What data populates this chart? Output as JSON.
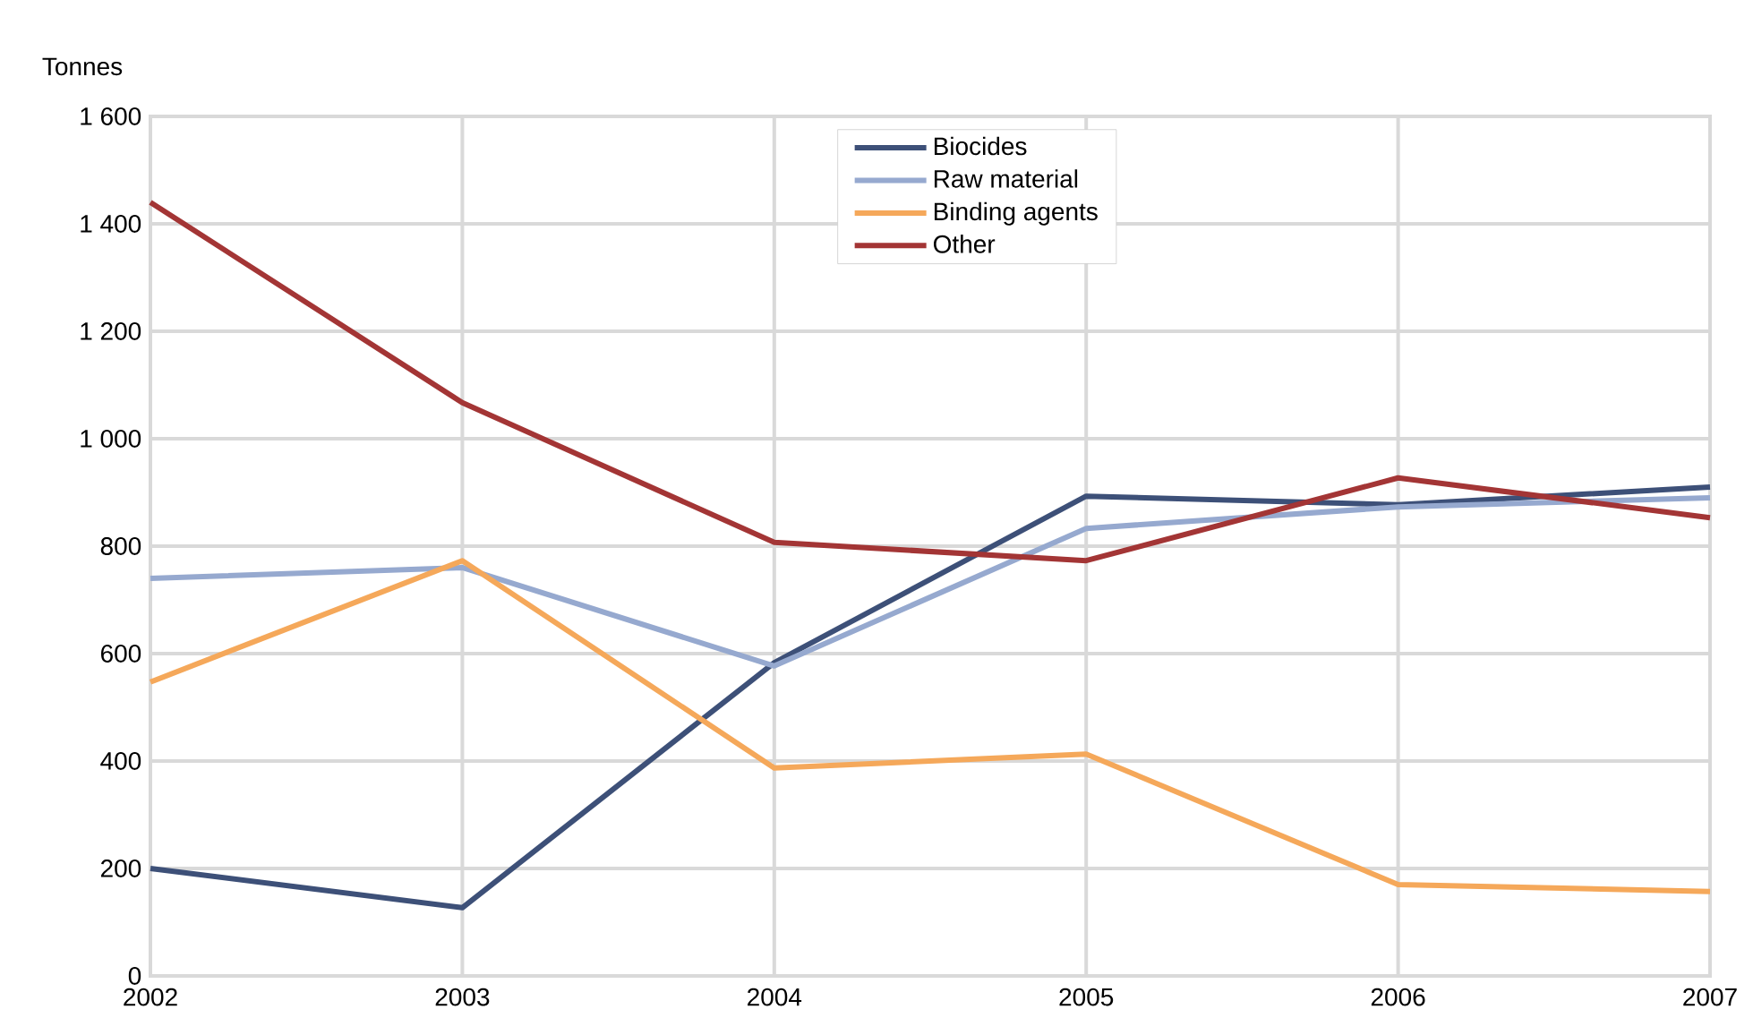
{
  "chart_data": {
    "type": "line",
    "ylabel": "Tonnes",
    "x": [
      2002,
      2003,
      2004,
      2005,
      2006,
      2007
    ],
    "series": [
      {
        "name": "Biocides",
        "color": "#3d5078",
        "values": [
          200,
          127,
          583,
          893,
          877,
          910
        ]
      },
      {
        "name": "Raw material",
        "color": "#96a9cf",
        "values": [
          740,
          760,
          577,
          833,
          873,
          890
        ]
      },
      {
        "name": "Binding agents",
        "color": "#f5a85a",
        "values": [
          547,
          773,
          387,
          413,
          170,
          157
        ]
      },
      {
        "name": "Other",
        "color": "#a33535",
        "values": [
          1440,
          1067,
          807,
          773,
          927,
          853
        ]
      }
    ],
    "xlim": [
      2002,
      2007
    ],
    "ylim": [
      0,
      1600
    ],
    "xticks": [
      2002,
      2003,
      2004,
      2005,
      2006,
      2007
    ],
    "yticks": [
      0,
      200,
      400,
      600,
      800,
      {
        "value": 1000,
        "label": "1 000"
      },
      {
        "value": 1200,
        "label": "1 200"
      },
      {
        "value": 1400,
        "label": "1 400"
      },
      {
        "value": 1600,
        "label": "1 600"
      }
    ],
    "grid": true,
    "legend": "top",
    "marker": "none",
    "line_style": "solid"
  }
}
